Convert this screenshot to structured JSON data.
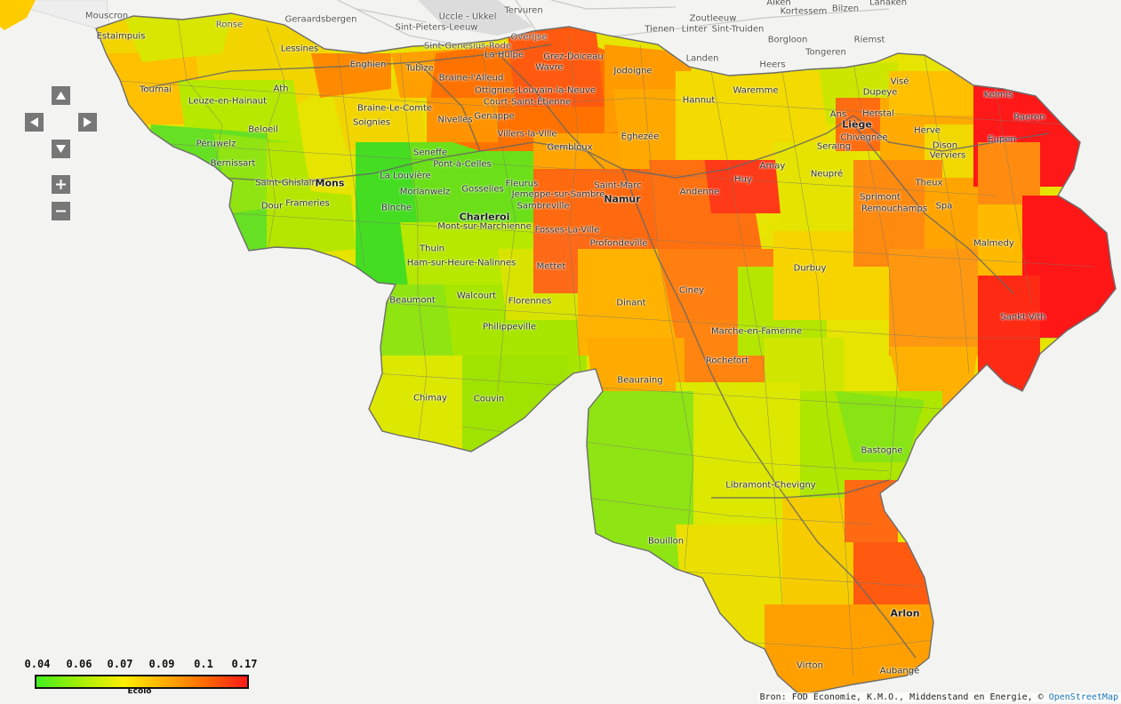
{
  "map": {
    "metric": "Ecolo",
    "legend_ticks": [
      "0.04",
      "0.06",
      "0.07",
      "0.09",
      "0.1",
      "0.17"
    ],
    "color_scale": [
      "#44ee22",
      "#aaee00",
      "#ffee00",
      "#ffaa00",
      "#ff6a00",
      "#ff1a1a"
    ],
    "attribution_text": "Bron: FOD Economie, K.M.O., Middenstand en Energie, © ",
    "attribution_link": "OpenStreetMap"
  },
  "controls": {
    "pan_up_icon": "triangle-up-icon",
    "pan_left_icon": "triangle-left-icon",
    "pan_right_icon": "triangle-right-icon",
    "pan_down_icon": "triangle-down-icon",
    "zoom_in_icon": "plus-icon",
    "zoom_out_icon": "minus-icon"
  },
  "places": [
    {
      "name": "Mouscron"
    },
    {
      "name": "Estaimpuis"
    },
    {
      "name": "Ronse"
    },
    {
      "name": "Geraardsbergen"
    },
    {
      "name": "Uccle - Ukkel"
    },
    {
      "name": "Sint-Pieters-Leeuw"
    },
    {
      "name": "Sint-Genesius-Rode"
    },
    {
      "name": "Tervuren"
    },
    {
      "name": "Overijse"
    },
    {
      "name": "Tienen"
    },
    {
      "name": "Zoutleeuw"
    },
    {
      "name": "Linter"
    },
    {
      "name": "Sint-Truiden"
    },
    {
      "name": "Alken"
    },
    {
      "name": "Kortessem"
    },
    {
      "name": "Bilzen"
    },
    {
      "name": "Lanaken"
    },
    {
      "name": "Borgloon"
    },
    {
      "name": "Riemst"
    },
    {
      "name": "Tongeren"
    },
    {
      "name": "Landen"
    },
    {
      "name": "Heers"
    },
    {
      "name": "Lessines"
    },
    {
      "name": "Tournai"
    },
    {
      "name": "Leuze-en-Hainaut"
    },
    {
      "name": "Ath"
    },
    {
      "name": "Enghien"
    },
    {
      "name": "Tubize"
    },
    {
      "name": "La Hulpe"
    },
    {
      "name": "Grez-Doiceau"
    },
    {
      "name": "Wavre"
    },
    {
      "name": "Jodoigne"
    },
    {
      "name": "Braine-l'Alleud"
    },
    {
      "name": "Ottignies-Louvain-la-Neuve"
    },
    {
      "name": "Court-Saint-Étienne"
    },
    {
      "name": "Genappe"
    },
    {
      "name": "Nivelles"
    },
    {
      "name": "Villers-la-Ville"
    },
    {
      "name": "Hannut"
    },
    {
      "name": "Waremme"
    },
    {
      "name": "Visé"
    },
    {
      "name": "Dupeye"
    },
    {
      "name": "Kelmis"
    },
    {
      "name": "Raeren"
    },
    {
      "name": "Eupen"
    },
    {
      "name": "Ans"
    },
    {
      "name": "Herstal"
    },
    {
      "name": "Liège"
    },
    {
      "name": "Chivegnée"
    },
    {
      "name": "Herve"
    },
    {
      "name": "Dison"
    },
    {
      "name": "Verviers"
    },
    {
      "name": "Seraing"
    },
    {
      "name": "Neupré"
    },
    {
      "name": "Theux"
    },
    {
      "name": "Spa"
    },
    {
      "name": "Sprimont"
    },
    {
      "name": "Remouchamps"
    },
    {
      "name": "Malmedy"
    },
    {
      "name": "Sankt-Vith"
    },
    {
      "name": "Braine-Le-Comte"
    },
    {
      "name": "Soignies"
    },
    {
      "name": "Péruwelz"
    },
    {
      "name": "Beloeil"
    },
    {
      "name": "Bernissart"
    },
    {
      "name": "Saint-Ghislain"
    },
    {
      "name": "Mons"
    },
    {
      "name": "Dour"
    },
    {
      "name": "Frameries"
    },
    {
      "name": "Seneffe"
    },
    {
      "name": "Pont-à-Celles"
    },
    {
      "name": "La Louvière"
    },
    {
      "name": "Morlanwelz"
    },
    {
      "name": "Gosselies"
    },
    {
      "name": "Fleurus"
    },
    {
      "name": "Binche"
    },
    {
      "name": "Charleroi"
    },
    {
      "name": "Mont-sur-Marchienne"
    },
    {
      "name": "Jemeppe-sur-Sambre"
    },
    {
      "name": "Sambreville"
    },
    {
      "name": "Gembloux"
    },
    {
      "name": "Éghezée"
    },
    {
      "name": "Saint-Marc"
    },
    {
      "name": "Namur"
    },
    {
      "name": "Andenne"
    },
    {
      "name": "Huy"
    },
    {
      "name": "Amay"
    },
    {
      "name": "Fosses-La-Ville"
    },
    {
      "name": "Profondeville"
    },
    {
      "name": "Mettet"
    },
    {
      "name": "Thuin"
    },
    {
      "name": "Ham-sur-Heure-Nalinnes"
    },
    {
      "name": "Walcourt"
    },
    {
      "name": "Florennes"
    },
    {
      "name": "Beaumont"
    },
    {
      "name": "Philippeville"
    },
    {
      "name": "Dinant"
    },
    {
      "name": "Ciney"
    },
    {
      "name": "Durbuy"
    },
    {
      "name": "Marche-en-Famenne"
    },
    {
      "name": "Rochefort"
    },
    {
      "name": "Beauraing"
    },
    {
      "name": "Chimay"
    },
    {
      "name": "Couvin"
    },
    {
      "name": "Bastogne"
    },
    {
      "name": "Libramont-Chevigny"
    },
    {
      "name": "Bouillon"
    },
    {
      "name": "Arlon"
    },
    {
      "name": "Virton"
    },
    {
      "name": "Aubange"
    }
  ]
}
